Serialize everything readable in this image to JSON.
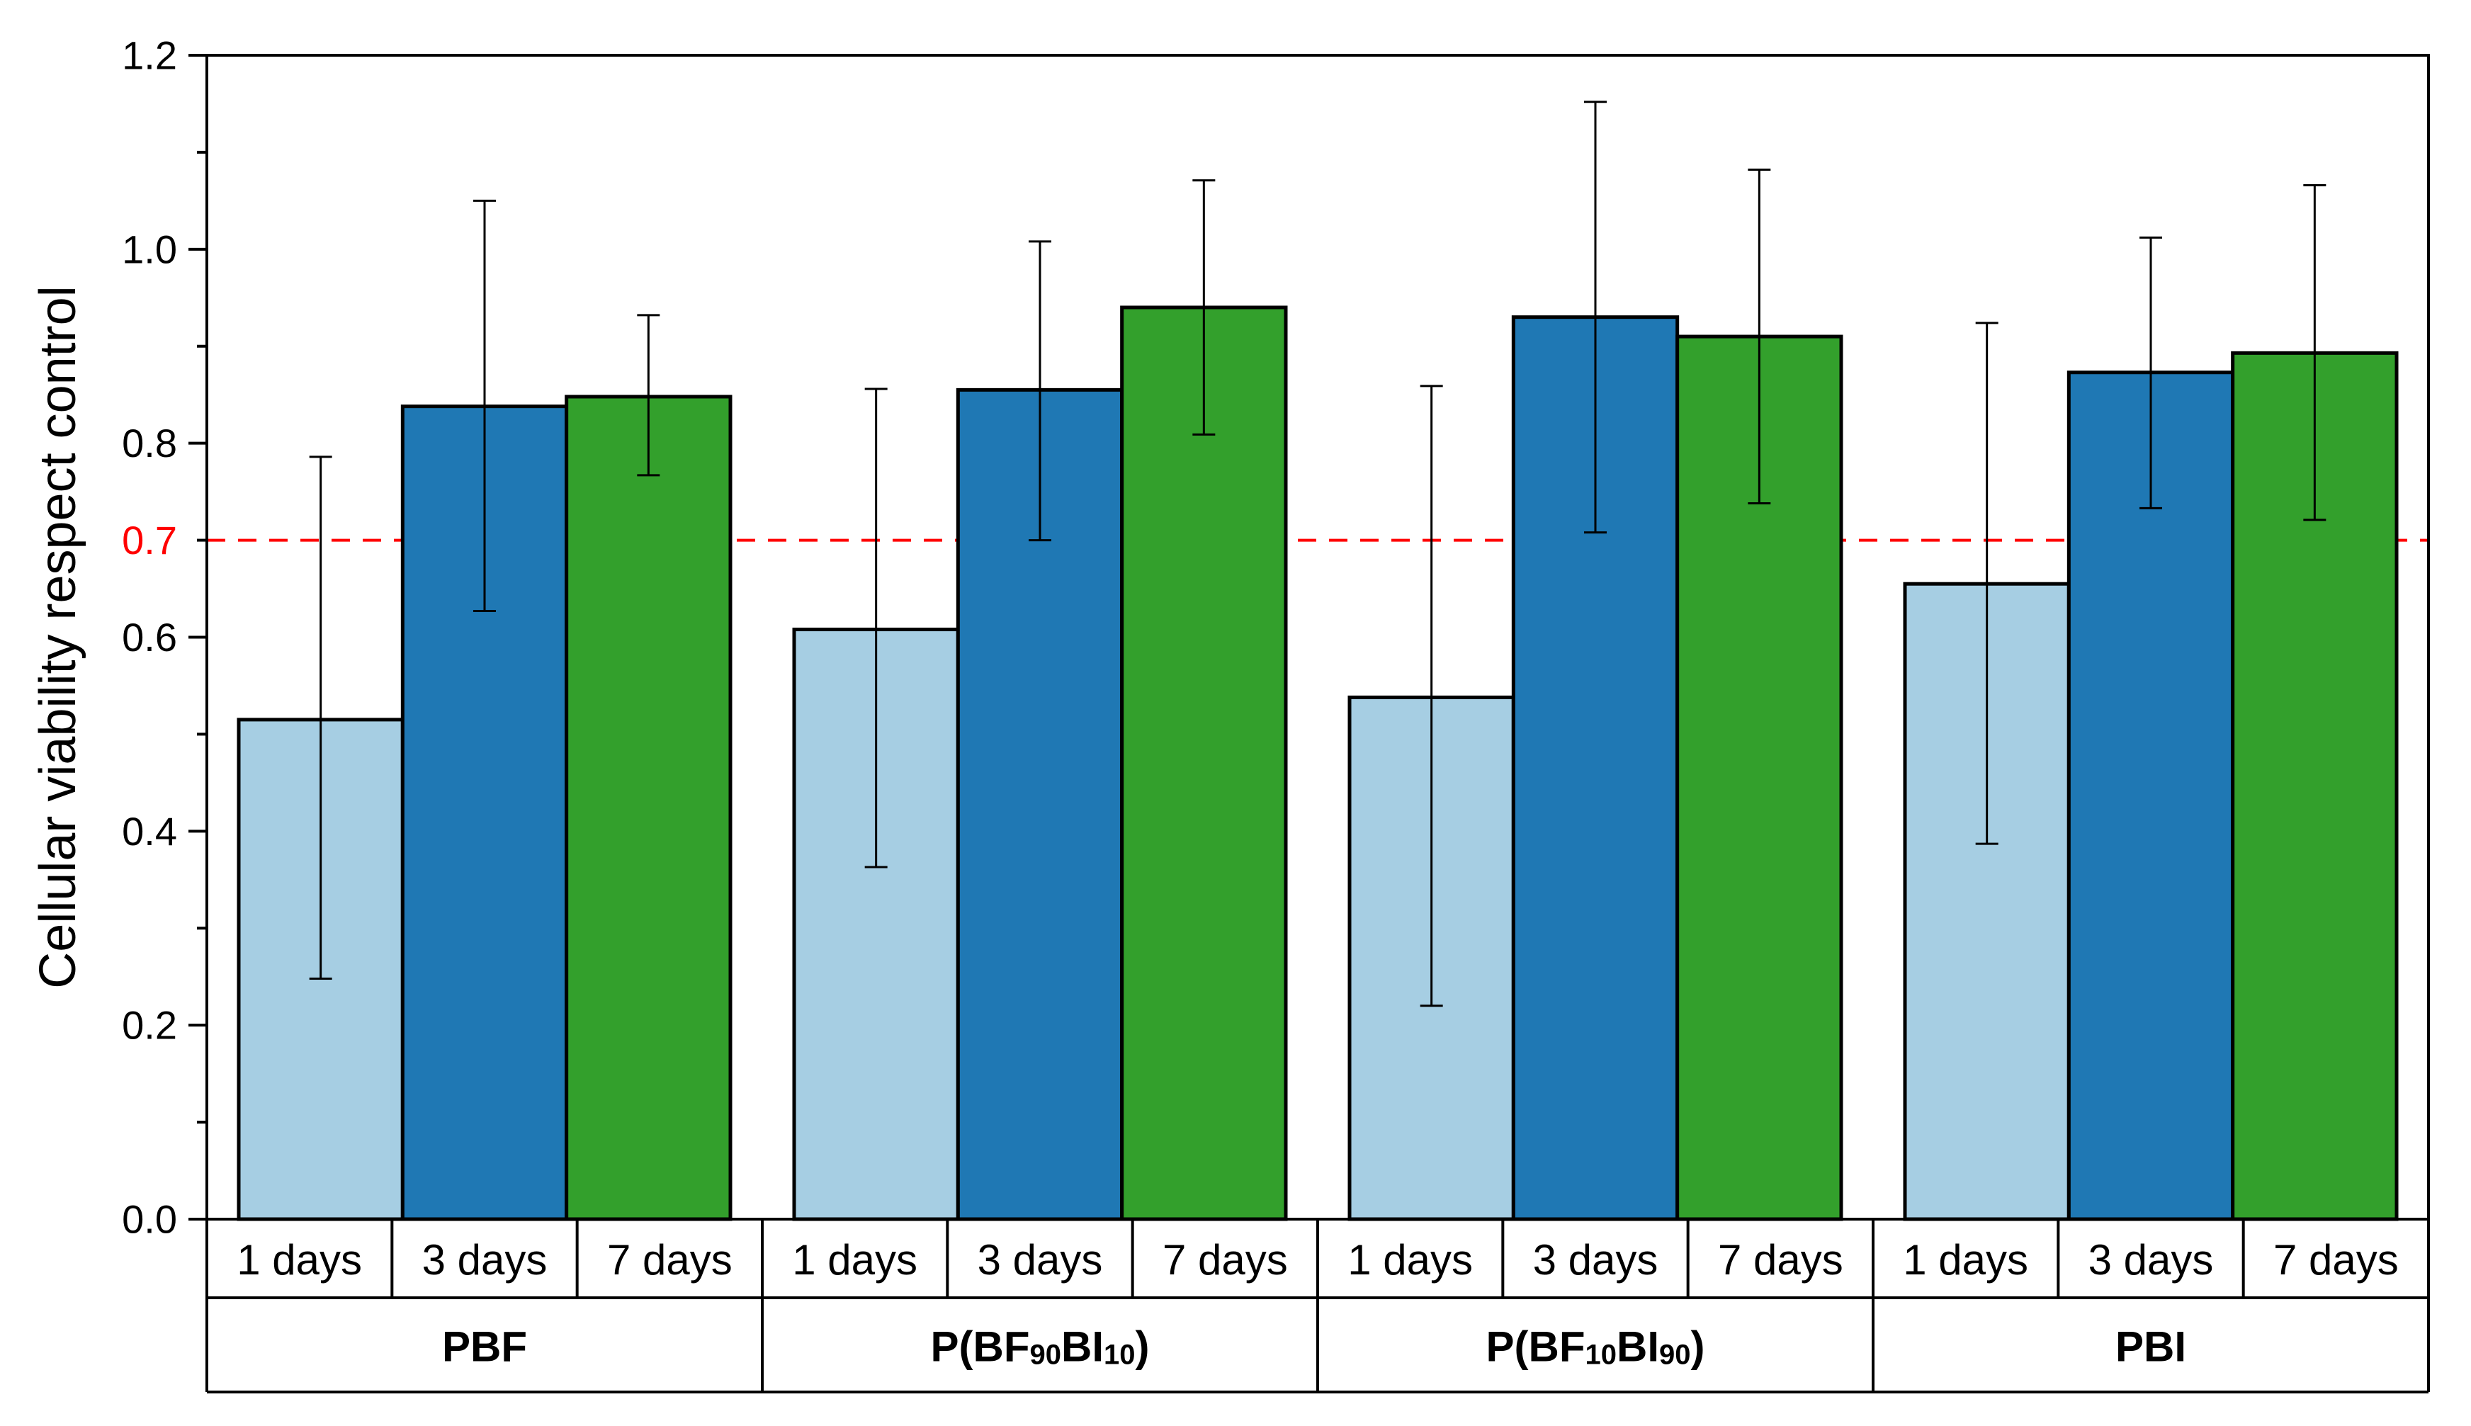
{
  "chart_data": {
    "type": "bar",
    "title": "",
    "xlabel": "",
    "ylabel": "Cellular viability respect control",
    "ylim": [
      0,
      1.2
    ],
    "yticks": [
      {
        "value": 0.0,
        "label": "0.0"
      },
      {
        "value": 0.2,
        "label": "0.2"
      },
      {
        "value": 0.4,
        "label": "0.4"
      },
      {
        "value": 0.6,
        "label": "0.6"
      },
      {
        "value": 0.8,
        "label": "0.8"
      },
      {
        "value": 1.0,
        "label": "1.0"
      },
      {
        "value": 1.2,
        "label": "1.2"
      }
    ],
    "yminor_step": 0.1,
    "grid": false,
    "reference_line": {
      "value": 0.7,
      "label": "0.7",
      "color": "#ff0000",
      "style": "dashed"
    },
    "categories": [
      "1 days",
      "3 days",
      "7 days"
    ],
    "groups": [
      {
        "name": "PBF",
        "name_parts": [
          {
            "t": "PBF",
            "sub": false
          }
        ],
        "bars": [
          {
            "category": "1 days",
            "value": 0.515,
            "err_low": 0.248,
            "err_high": 0.786
          },
          {
            "category": "3 days",
            "value": 0.838,
            "err_low": 0.627,
            "err_high": 1.05
          },
          {
            "category": "7 days",
            "value": 0.848,
            "err_low": 0.767,
            "err_high": 0.932
          }
        ]
      },
      {
        "name": "P(BF90BI10)",
        "name_parts": [
          {
            "t": "P(BF",
            "sub": false
          },
          {
            "t": "90",
            "sub": true
          },
          {
            "t": "BI",
            "sub": false
          },
          {
            "t": "10",
            "sub": true
          },
          {
            "t": ")",
            "sub": false
          }
        ],
        "bars": [
          {
            "category": "1 days",
            "value": 0.608,
            "err_low": 0.363,
            "err_high": 0.856
          },
          {
            "category": "3 days",
            "value": 0.855,
            "err_low": 0.7,
            "err_high": 1.008
          },
          {
            "category": "7 days",
            "value": 0.94,
            "err_low": 0.809,
            "err_high": 1.071
          }
        ]
      },
      {
        "name": "P(BF10BI90)",
        "name_parts": [
          {
            "t": "P(BF",
            "sub": false
          },
          {
            "t": "10",
            "sub": true
          },
          {
            "t": "BI",
            "sub": false
          },
          {
            "t": "90",
            "sub": true
          },
          {
            "t": ")",
            "sub": false
          }
        ],
        "bars": [
          {
            "category": "1 days",
            "value": 0.538,
            "err_low": 0.22,
            "err_high": 0.859
          },
          {
            "category": "3 days",
            "value": 0.93,
            "err_low": 0.708,
            "err_high": 1.152
          },
          {
            "category": "7 days",
            "value": 0.91,
            "err_low": 0.738,
            "err_high": 1.082
          }
        ]
      },
      {
        "name": "PBI",
        "name_parts": [
          {
            "t": "PBI",
            "sub": false
          }
        ],
        "bars": [
          {
            "category": "1 days",
            "value": 0.655,
            "err_low": 0.387,
            "err_high": 0.924
          },
          {
            "category": "3 days",
            "value": 0.873,
            "err_low": 0.733,
            "err_high": 1.012
          },
          {
            "category": "7 days",
            "value": 0.893,
            "err_low": 0.721,
            "err_high": 1.066
          }
        ]
      }
    ],
    "colors": {
      "1 days": "#a6cee3",
      "3 days": "#1f78b4",
      "7 days": "#33a02c"
    }
  }
}
